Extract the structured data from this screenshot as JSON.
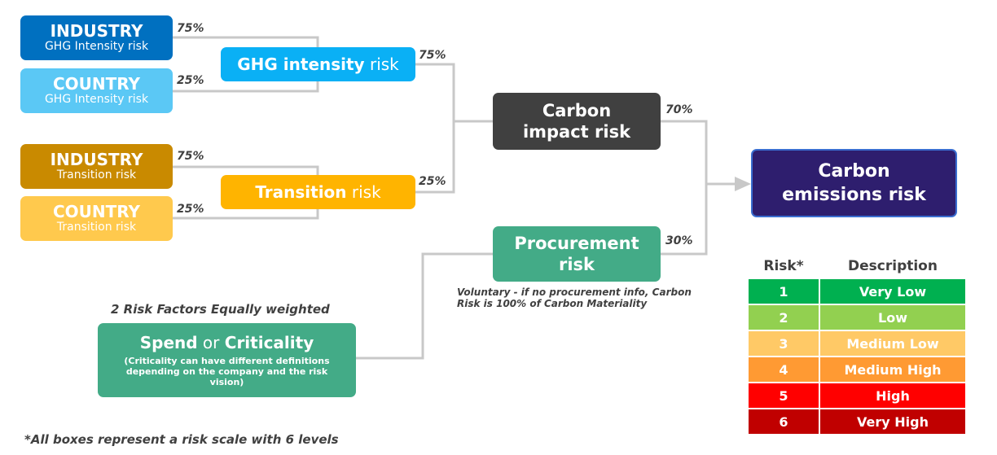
{
  "industry_ghg": {
    "title": "INDUSTRY",
    "subtitle": "GHG Intensity risk",
    "weight": "75%"
  },
  "country_ghg": {
    "title": "COUNTRY",
    "subtitle": "GHG Intensity risk",
    "weight": "25%"
  },
  "ghg_intensity": {
    "bold": "GHG intensity",
    "normal": " risk",
    "weight": "75%"
  },
  "industry_transition": {
    "title": "INDUSTRY",
    "subtitle": "Transition risk",
    "weight": "75%"
  },
  "country_transition": {
    "title": "COUNTRY",
    "subtitle": "Transition risk",
    "weight": "25%"
  },
  "transition": {
    "bold": "Transition",
    "normal": " risk",
    "weight": "25%"
  },
  "carbon_impact": {
    "line1": "Carbon",
    "line2": "impact risk",
    "weight": "70%"
  },
  "procurement": {
    "line1": "Procurement",
    "line2": "risk",
    "weight": "30%",
    "note_line1": "Voluntary - if no procurement info, Carbon",
    "note_line2": "Risk is 100% of Carbon Materiality"
  },
  "carbon_emissions": {
    "line1": "Carbon",
    "line2": "emissions risk"
  },
  "spend": {
    "heading": "2 Risk Factors Equally weighted",
    "bold1": "Spend",
    "normal": " or ",
    "bold2": "Criticality",
    "desc": "(Criticality can have different definitions depending on the company and the risk vision)"
  },
  "footnote": "*All boxes represent a risk scale with 6 levels",
  "risk_table": {
    "header_risk": "Risk*",
    "header_desc": "Description",
    "rows": [
      {
        "level": "1",
        "desc": "Very Low",
        "color": "#00b050"
      },
      {
        "level": "2",
        "desc": "Low",
        "color": "#92d050"
      },
      {
        "level": "3",
        "desc": "Medium Low",
        "color": "#ffc966"
      },
      {
        "level": "4",
        "desc": "Medium High",
        "color": "#ff9a33"
      },
      {
        "level": "5",
        "desc": "High",
        "color": "#ff0000"
      },
      {
        "level": "6",
        "desc": "Very High",
        "color": "#c00000"
      }
    ]
  },
  "colors": {
    "industry_ghg": "#0070c0",
    "country_ghg": "#5bc8f5",
    "ghg_intensity": "#0ab0f5",
    "industry_transition": "#c98a00",
    "country_transition": "#ffc94d",
    "transition": "#ffb400",
    "carbon_impact": "#404040",
    "procurement": "#43ab87",
    "spend": "#43ab87",
    "carbon_emissions": "#2e1e6e",
    "connector": "#c8c8c8"
  }
}
